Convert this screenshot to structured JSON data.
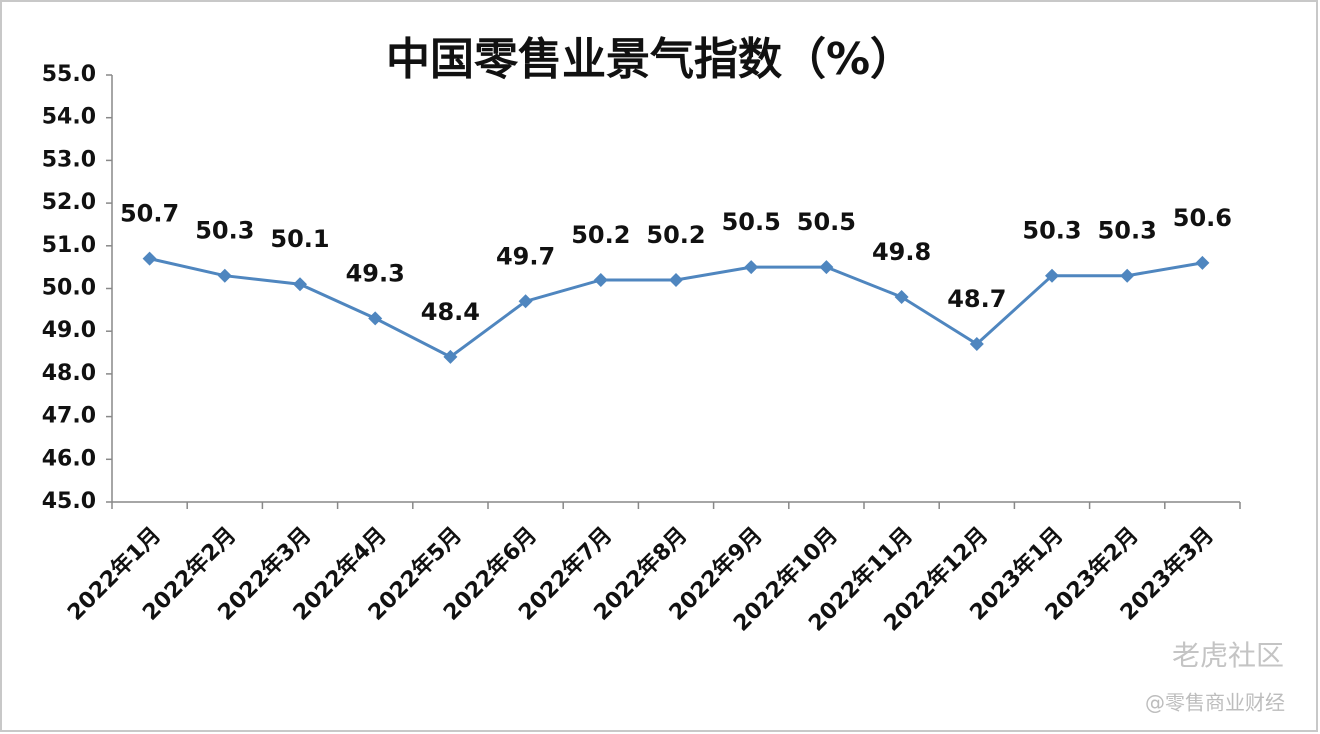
{
  "chart_data": {
    "type": "line",
    "title": "中国零售业景气指数（%）",
    "categories": [
      "2022年1月",
      "2022年2月",
      "2022年3月",
      "2022年4月",
      "2022年5月",
      "2022年6月",
      "2022年7月",
      "2022年8月",
      "2022年9月",
      "2022年10月",
      "2022年11月",
      "2022年12月",
      "2023年1月",
      "2023年2月",
      "2023年3月"
    ],
    "values": [
      50.7,
      50.3,
      50.1,
      49.3,
      48.4,
      49.7,
      50.2,
      50.2,
      50.5,
      50.5,
      49.8,
      48.7,
      50.3,
      50.3,
      50.6
    ],
    "color": "#4f86bf",
    "ylim": [
      45,
      55
    ],
    "yticks": [
      {
        "value": 45,
        "label": "45.0"
      },
      {
        "value": 46,
        "label": "46.0"
      },
      {
        "value": 47,
        "label": "47.0"
      },
      {
        "value": 48,
        "label": "48.0"
      },
      {
        "value": 49,
        "label": "49.0"
      },
      {
        "value": 50,
        "label": "50.0"
      },
      {
        "value": 51,
        "label": "51.0"
      },
      {
        "value": 52,
        "label": "52.0"
      },
      {
        "value": 53,
        "label": "53.0"
      },
      {
        "value": 54,
        "label": "54.0"
      },
      {
        "value": 55,
        "label": "55.0"
      }
    ],
    "grid": false,
    "annotations": [
      "老虎社区",
      "@零售商业财经"
    ]
  }
}
